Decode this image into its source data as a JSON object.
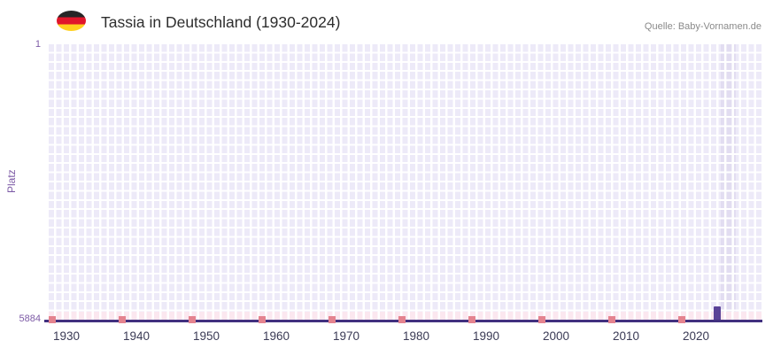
{
  "header": {
    "title": "Tassia in Deutschland (1930-2024)",
    "source": "Quelle: Baby-Vornamen.de",
    "flag_icon": "germany-flag"
  },
  "chart_data": {
    "type": "bar",
    "title": "Tassia in Deutschland (1930-2024)",
    "source": "Quelle: Baby-Vornamen.de",
    "xlabel": "",
    "ylabel": "Platz",
    "y_axis": {
      "top_tick": "1",
      "bottom_tick": "5884",
      "min": 1,
      "max": 5884,
      "inverted": true
    },
    "x_ticks": [
      "1930",
      "1940",
      "1950",
      "1960",
      "1970",
      "1980",
      "1990",
      "2000",
      "2010",
      "2020"
    ],
    "x_range": [
      1930,
      2024
    ],
    "grid": true,
    "legend": false,
    "series": [
      {
        "name": "Platz",
        "points": [
          {
            "year": 2023,
            "rank": 5600
          }
        ]
      }
    ],
    "highlighted_year": 2024
  },
  "colors": {
    "plot_bg": "#edeaf8",
    "grid_line": "#ffffff",
    "highlight_col": "#e2ddf1",
    "bar": "#5a4397",
    "axis_line": "#41307f",
    "no_data_row": "#fbe7ef",
    "tick_marker": "#e4838f",
    "axis_label": "#7d5ba6",
    "x_label": "#3a3a55",
    "title": "#2e2e2e",
    "source": "#8a8a8a"
  }
}
